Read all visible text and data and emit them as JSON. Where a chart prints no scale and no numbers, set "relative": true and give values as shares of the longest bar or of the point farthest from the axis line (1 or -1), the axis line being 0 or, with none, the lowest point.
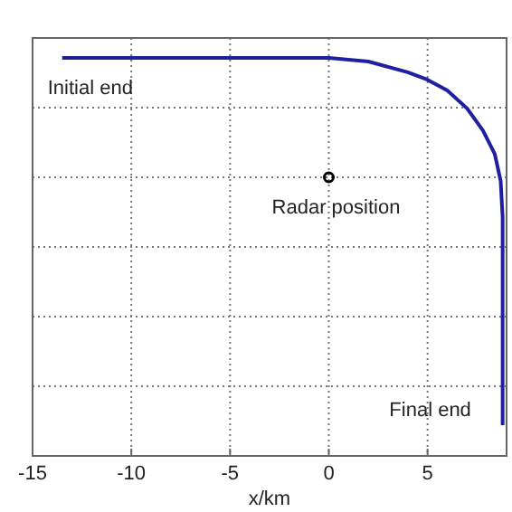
{
  "chart_data": {
    "type": "line",
    "xlabel": "x/km",
    "relative": true,
    "xlim": [
      -15,
      9
    ],
    "xticks": [
      -15,
      -10,
      -5,
      0,
      5
    ],
    "grid": true,
    "line_style": "solid",
    "series": [
      {
        "color": "#1f1f9f",
        "x": [
          -13.5,
          -10,
          -5,
          0,
          2,
          4,
          5,
          6,
          7,
          7.8,
          8.4,
          8.7,
          8.8,
          8.8
        ],
        "values": [
          1.0,
          1.0,
          1.0,
          1.0,
          0.991,
          0.964,
          0.945,
          0.918,
          0.873,
          0.818,
          0.759,
          0.691,
          0.6,
          0.077
        ]
      },
      {
        "type": "scatter",
        "color": "#000000",
        "x": [
          0
        ],
        "values": [
          0.7
        ],
        "marker": "circle"
      }
    ],
    "annotations": [
      "Initial end",
      "Radar position",
      "Final end"
    ]
  }
}
